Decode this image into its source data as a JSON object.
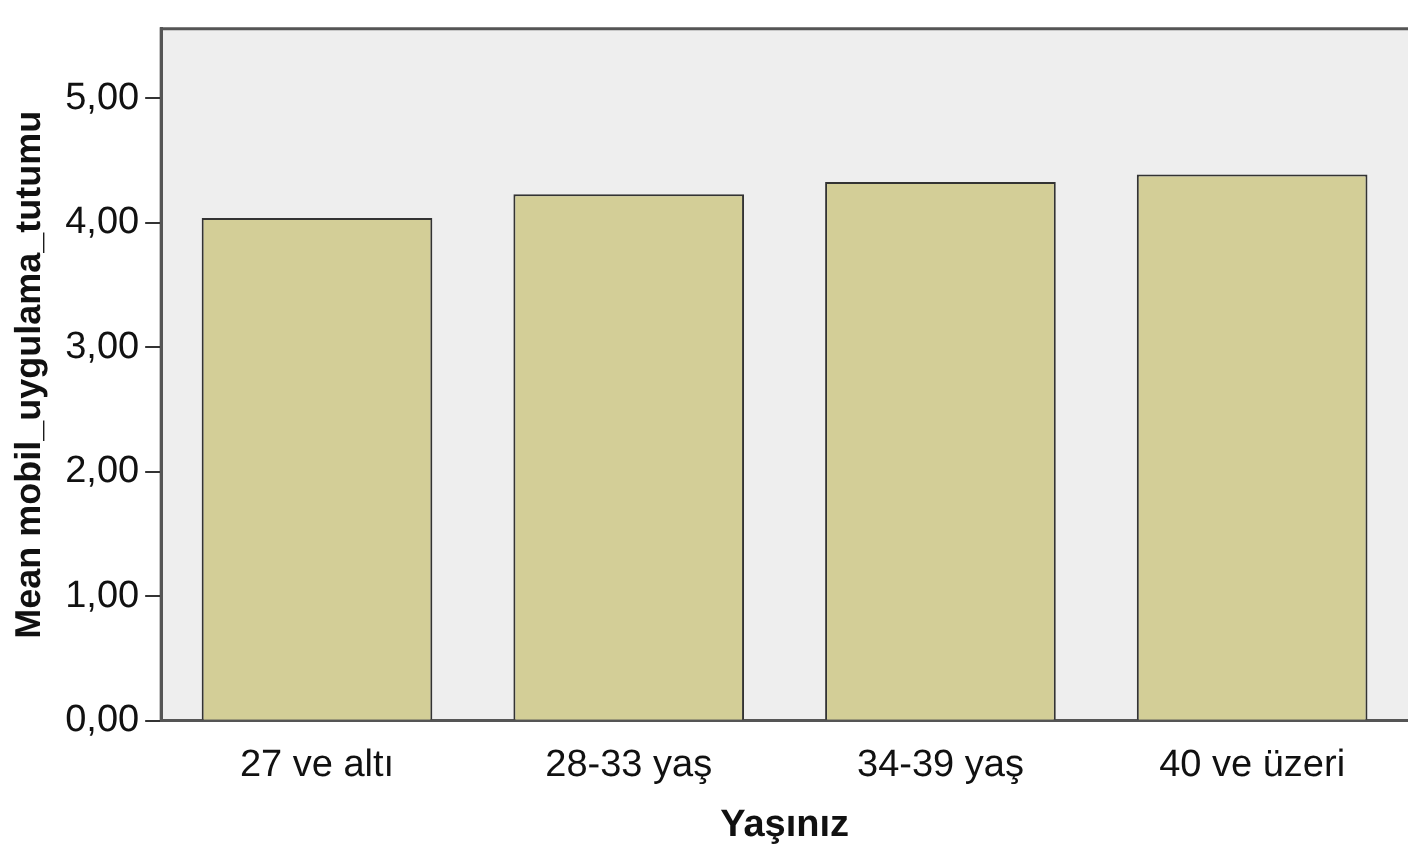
{
  "chart_data": {
    "type": "bar",
    "xlabel": "Yaşınız",
    "ylabel": "Mean mobil_uygulama_tutumu",
    "categories": [
      "27 ve altı",
      "28-33 yaş",
      "34-39 yaş",
      "40 ve üzeri"
    ],
    "values": [
      4.04,
      4.23,
      4.33,
      4.39
    ],
    "color": "#d3ce97",
    "ylim": [
      0,
      5.56
    ],
    "yticks": [
      {
        "value": 0,
        "label": "0,00"
      },
      {
        "value": 1,
        "label": "1,00"
      },
      {
        "value": 2,
        "label": "2,00"
      },
      {
        "value": 3,
        "label": "3,00"
      },
      {
        "value": 4,
        "label": "4,00"
      },
      {
        "value": 5,
        "label": "5,00"
      }
    ],
    "grid": false,
    "legend": false
  }
}
